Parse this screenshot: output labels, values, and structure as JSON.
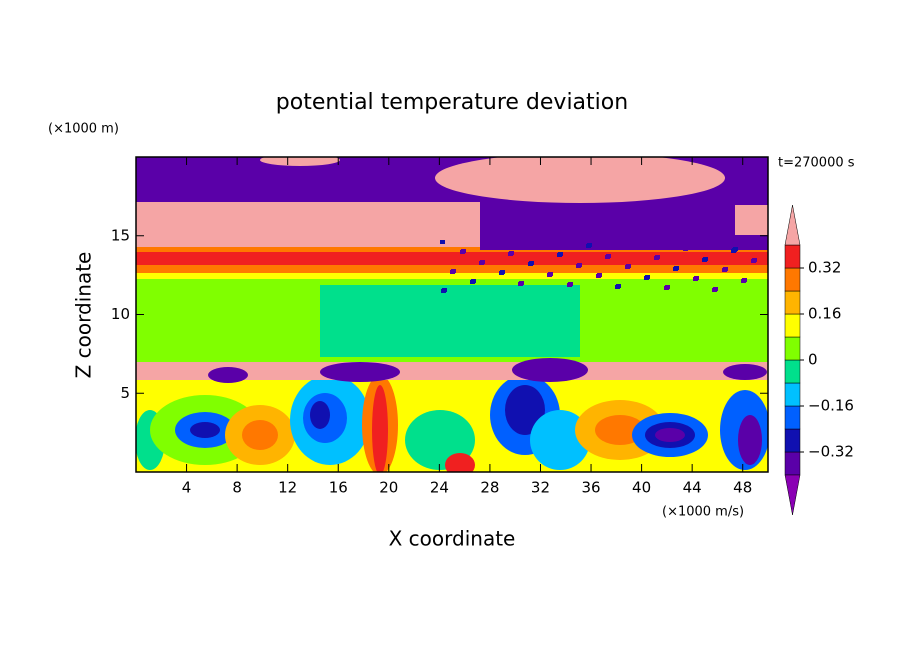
{
  "chart_data": {
    "type": "contour",
    "title": "potential temperature deviation",
    "xlabel": "X coordinate",
    "ylabel": "Z coordinate",
    "x_unit_label": "(×1000 m/s)",
    "y_unit_label": "(×1000 m)",
    "time_label": "t=270000 s",
    "xlim": [
      0,
      50
    ],
    "ylim": [
      0,
      20
    ],
    "xticks": [
      4,
      8,
      12,
      16,
      20,
      24,
      28,
      32,
      36,
      40,
      44,
      48
    ],
    "yticks": [
      5,
      10,
      15
    ],
    "colorbar": {
      "levels": [
        -0.4,
        -0.32,
        -0.24,
        -0.16,
        -0.08,
        0,
        0.08,
        0.16,
        0.24,
        0.32,
        0.4
      ],
      "colors": [
        "#8a00b4",
        "#5a00a8",
        "#1010b0",
        "#0060ff",
        "#00c0ff",
        "#00e08c",
        "#80ff00",
        "#ffff00",
        "#ffb400",
        "#ff7800",
        "#f02020",
        "#f5a5a5"
      ],
      "ticks": [
        {
          "value": -0.32,
          "label": "−0.32"
        },
        {
          "value": -0.16,
          "label": "−0.16"
        },
        0,
        0.16,
        0.32
      ]
    }
  }
}
